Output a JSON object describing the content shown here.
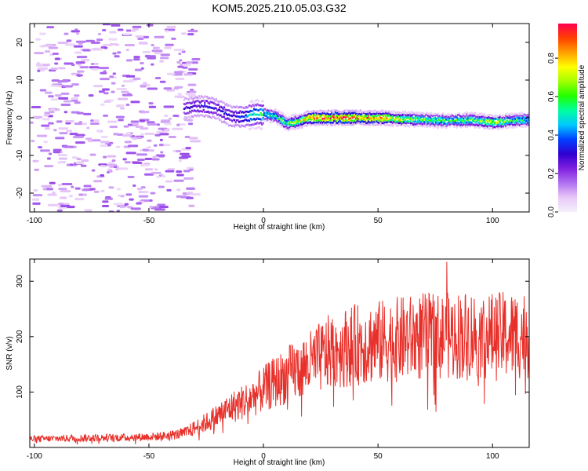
{
  "title": "KOM5.2025.210.05.03.G32",
  "chart_data": [
    {
      "type": "heatmap",
      "xlabel": "Height of straight line (km)",
      "ylabel": "Frequency (Hz)",
      "xlim": [
        -102,
        116
      ],
      "ylim": [
        -25,
        25
      ],
      "xticks": [
        -100,
        -50,
        0,
        50,
        100
      ],
      "yticks": [
        -20,
        -10,
        0,
        10,
        20
      ],
      "colorbar": {
        "label": "Normalized spectral amplitude",
        "range": [
          0,
          0.98
        ],
        "ticks": [
          0.0,
          0.2,
          0.4,
          0.6,
          0.8
        ],
        "colormap": [
          "#f4f0fa",
          "#e8c8f8",
          "#b070f0",
          "#8020e0",
          "#3000d0",
          "#0040ff",
          "#00c8ff",
          "#00ffa0",
          "#20ff00",
          "#a0ff00",
          "#ffff00",
          "#ffa000",
          "#ff4000",
          "#ff0050"
        ]
      },
      "ridge": [
        {
          "x": -35,
          "f": 2.5,
          "a": 0.25
        },
        {
          "x": -30,
          "f": 3.0,
          "a": 0.3
        },
        {
          "x": -25,
          "f": 3.0,
          "a": 0.3
        },
        {
          "x": -20,
          "f": 2.0,
          "a": 0.3
        },
        {
          "x": -15,
          "f": 0.5,
          "a": 0.3
        },
        {
          "x": -10,
          "f": 0.2,
          "a": 0.35
        },
        {
          "x": -5,
          "f": 0.8,
          "a": 0.5
        },
        {
          "x": 0,
          "f": 1.0,
          "a": 0.55
        },
        {
          "x": 5,
          "f": 0.5,
          "a": 0.5
        },
        {
          "x": 10,
          "f": -1.5,
          "a": 0.6
        },
        {
          "x": 15,
          "f": -1.0,
          "a": 0.7
        },
        {
          "x": 20,
          "f": 0.0,
          "a": 0.85
        },
        {
          "x": 30,
          "f": 0.0,
          "a": 0.95
        },
        {
          "x": 40,
          "f": 0.0,
          "a": 0.9
        },
        {
          "x": 50,
          "f": 0.0,
          "a": 0.85
        },
        {
          "x": 60,
          "f": -0.3,
          "a": 0.7
        },
        {
          "x": 70,
          "f": -0.5,
          "a": 0.6
        },
        {
          "x": 80,
          "f": -0.8,
          "a": 0.55
        },
        {
          "x": 90,
          "f": -0.5,
          "a": 0.6
        },
        {
          "x": 100,
          "f": -1.2,
          "a": 0.7
        },
        {
          "x": 110,
          "f": -0.6,
          "a": 0.55
        },
        {
          "x": 116,
          "f": -0.5,
          "a": 0.5
        }
      ],
      "noise_region": {
        "x_start": -102,
        "x_end": -35,
        "amplitude": 0.15
      }
    },
    {
      "type": "line",
      "xlabel": "Height of straight line (km)",
      "ylabel": "SNR (v/v)",
      "xlim": [
        -102,
        116
      ],
      "ylim": [
        0,
        340
      ],
      "xticks": [
        -100,
        -50,
        0,
        50,
        100
      ],
      "yticks": [
        100,
        200,
        300
      ],
      "color": "#e8302a",
      "trend": [
        {
          "x": -102,
          "snr": 15
        },
        {
          "x": -80,
          "snr": 17
        },
        {
          "x": -60,
          "snr": 18
        },
        {
          "x": -45,
          "snr": 20
        },
        {
          "x": -35,
          "snr": 25
        },
        {
          "x": -25,
          "snr": 45
        },
        {
          "x": -15,
          "snr": 70
        },
        {
          "x": -5,
          "snr": 90
        },
        {
          "x": 0,
          "snr": 105
        },
        {
          "x": 10,
          "snr": 130
        },
        {
          "x": 20,
          "snr": 150
        },
        {
          "x": 30,
          "snr": 175
        },
        {
          "x": 40,
          "snr": 185
        },
        {
          "x": 50,
          "snr": 190
        },
        {
          "x": 60,
          "snr": 195
        },
        {
          "x": 70,
          "snr": 200
        },
        {
          "x": 80,
          "snr": 200
        },
        {
          "x": 90,
          "snr": 205
        },
        {
          "x": 100,
          "snr": 200
        },
        {
          "x": 116,
          "snr": 205
        }
      ],
      "peak": {
        "x": 80,
        "snr": 335
      }
    }
  ]
}
